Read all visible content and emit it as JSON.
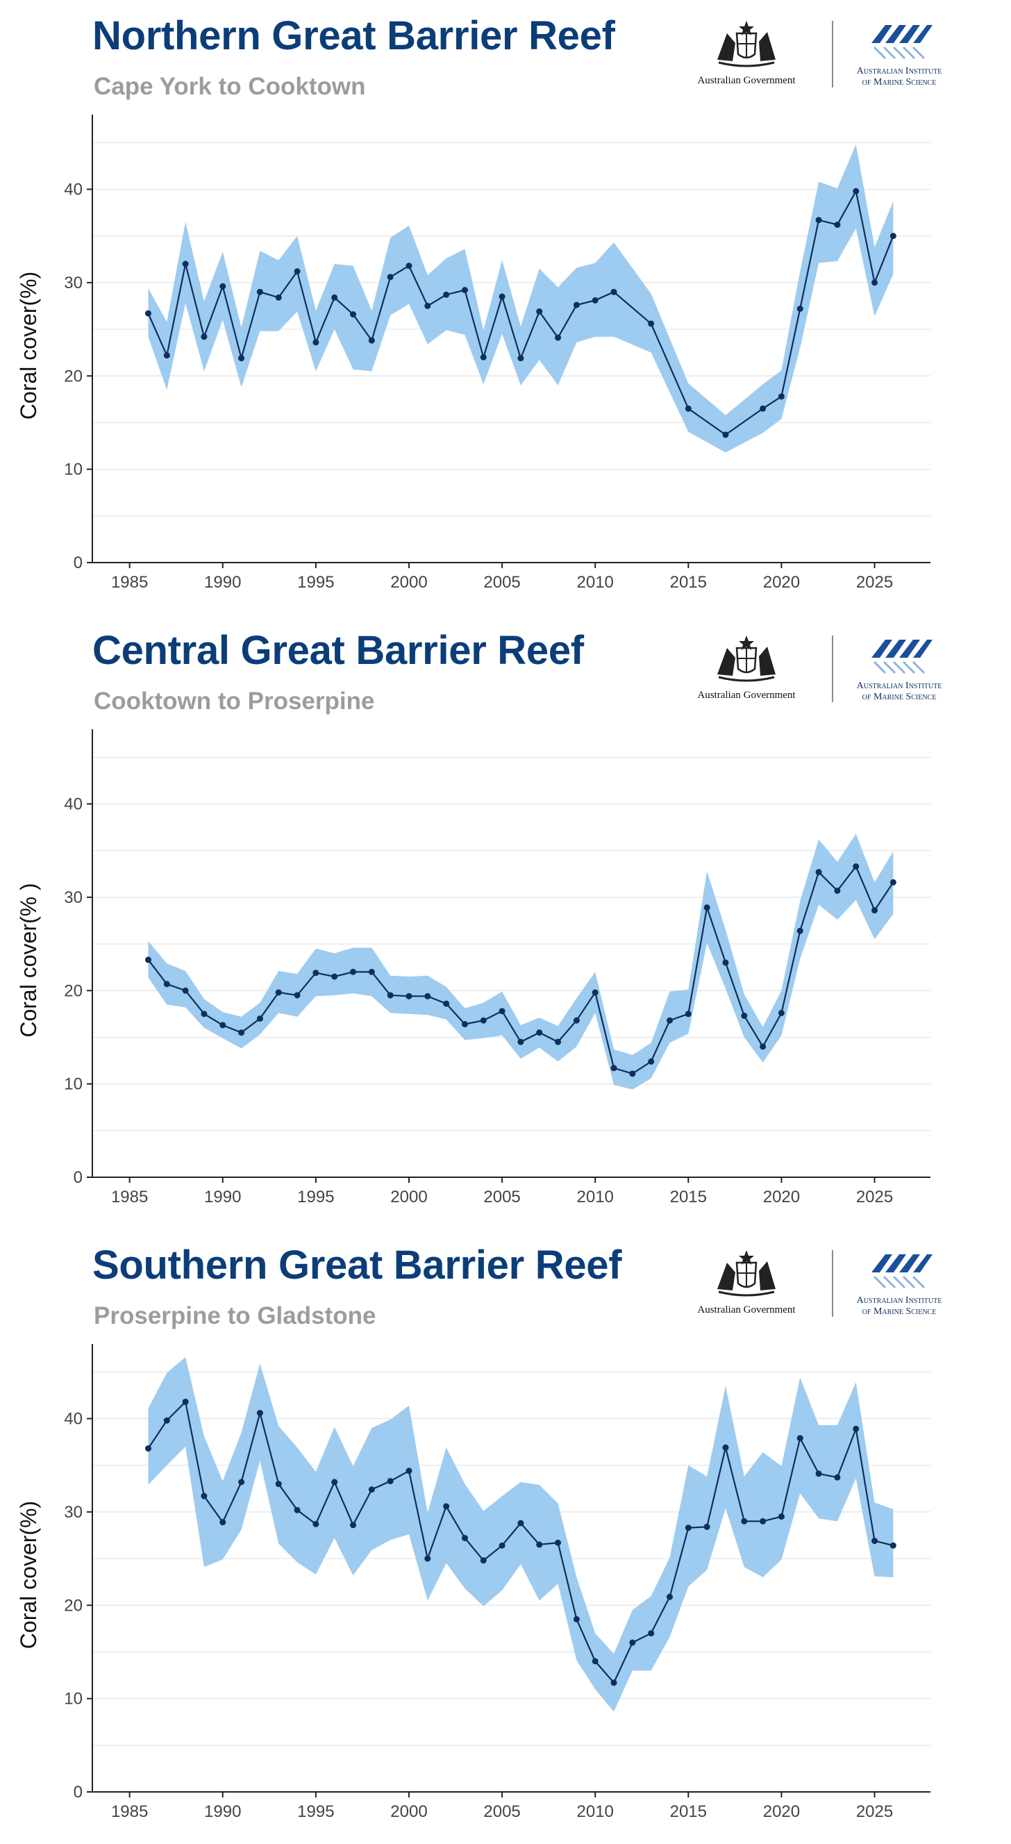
{
  "branding": {
    "government": "Australian Government",
    "institute_line1": "Australian Institute",
    "institute_line2": "of Marine Science"
  },
  "chart_data": [
    {
      "type": "line",
      "title": "Northern Great Barrier Reef",
      "subtitle": "Cape York to Cooktown",
      "ylabel": "Coral cover(%)",
      "xlabel": "",
      "xlim": [
        1983,
        2028
      ],
      "ylim": [
        0,
        48
      ],
      "x_ticks": [
        1985,
        1990,
        1995,
        2000,
        2005,
        2010,
        2015,
        2020,
        2025
      ],
      "y_ticks": [
        0,
        10,
        20,
        30,
        40
      ],
      "grid": true,
      "colors": {
        "band": "#9ecbf0",
        "line": "#0d2f5a",
        "title": "#0b3d79",
        "subtitle": "#9c9c9c"
      },
      "series": [
        {
          "x": [
            1986,
            1987,
            1988,
            1989,
            1990,
            1991,
            1992,
            1993,
            1994,
            1995,
            1996,
            1997,
            1998,
            1999,
            2000,
            2001,
            2002,
            2003,
            2004,
            2005,
            2006,
            2007,
            2008,
            2009,
            2010,
            2011,
            2013,
            2015,
            2017,
            2019,
            2020,
            2021,
            2022,
            2023,
            2024,
            2025,
            2026
          ],
          "y": [
            26.7,
            22.2,
            32.0,
            24.2,
            29.6,
            21.9,
            29.0,
            28.4,
            31.2,
            23.6,
            28.4,
            26.6,
            23.8,
            30.6,
            31.8,
            27.5,
            28.7,
            29.2,
            22.0,
            28.5,
            21.9,
            26.9,
            24.1,
            27.6,
            28.1,
            29.0,
            25.6,
            16.5,
            13.7,
            16.5,
            17.8,
            27.2,
            36.7,
            36.2,
            39.8,
            30.0,
            35.0
          ],
          "lower": [
            24.2,
            18.5,
            27.8,
            20.5,
            26.0,
            18.8,
            24.8,
            24.8,
            26.9,
            20.5,
            25.0,
            20.7,
            20.5,
            26.5,
            27.7,
            23.4,
            24.9,
            24.4,
            19.1,
            24.5,
            19.0,
            21.7,
            19.0,
            23.6,
            24.2,
            24.2,
            22.5,
            14.0,
            11.8,
            13.9,
            15.4,
            23.0,
            32.1,
            32.3,
            35.8,
            26.4,
            30.9
          ],
          "upper": [
            29.4,
            25.8,
            36.5,
            28.0,
            33.3,
            25.2,
            33.4,
            32.4,
            35.0,
            27.0,
            32.0,
            31.8,
            27.0,
            34.8,
            36.1,
            30.8,
            32.6,
            33.6,
            24.9,
            32.4,
            25.3,
            31.5,
            29.5,
            31.6,
            32.1,
            34.3,
            28.8,
            19.2,
            15.8,
            19.1,
            20.6,
            31.2,
            40.8,
            40.1,
            44.8,
            33.8,
            38.7
          ]
        }
      ]
    },
    {
      "type": "line",
      "title": "Central Great Barrier Reef",
      "subtitle": "Cooktown to Proserpine",
      "ylabel": "Coral cover(% )",
      "xlabel": "",
      "xlim": [
        1983,
        2028
      ],
      "ylim": [
        0,
        48
      ],
      "x_ticks": [
        1985,
        1990,
        1995,
        2000,
        2005,
        2010,
        2015,
        2020,
        2025
      ],
      "y_ticks": [
        0,
        10,
        20,
        30,
        40
      ],
      "grid": true,
      "colors": {
        "band": "#9ecbf0",
        "line": "#0d2f5a",
        "title": "#0b3d79",
        "subtitle": "#9c9c9c"
      },
      "series": [
        {
          "x": [
            1986,
            1987,
            1988,
            1989,
            1990,
            1991,
            1992,
            1993,
            1994,
            1995,
            1996,
            1997,
            1998,
            1999,
            2000,
            2001,
            2002,
            2003,
            2004,
            2005,
            2006,
            2007,
            2008,
            2009,
            2010,
            2011,
            2012,
            2013,
            2014,
            2015,
            2016,
            2017,
            2018,
            2019,
            2020,
            2021,
            2022,
            2023,
            2024,
            2025,
            2026
          ],
          "y": [
            23.3,
            20.7,
            20.0,
            17.5,
            16.3,
            15.5,
            17.0,
            19.8,
            19.5,
            21.9,
            21.5,
            22.0,
            22.0,
            19.5,
            19.4,
            19.4,
            18.6,
            16.4,
            16.8,
            17.8,
            14.5,
            15.5,
            14.5,
            16.8,
            19.8,
            11.7,
            11.1,
            12.4,
            16.8,
            17.5,
            28.9,
            23.0,
            17.3,
            14.0,
            17.6,
            26.4,
            32.7,
            30.7,
            33.3,
            28.6,
            31.6
          ],
          "lower": [
            21.4,
            18.5,
            18.2,
            16.0,
            14.9,
            13.8,
            15.3,
            17.6,
            17.2,
            19.4,
            19.5,
            19.7,
            19.4,
            17.6,
            17.5,
            17.4,
            16.9,
            14.7,
            14.9,
            15.2,
            12.7,
            13.9,
            12.4,
            14.0,
            17.6,
            9.9,
            9.4,
            10.6,
            14.4,
            15.4,
            25.1,
            20.2,
            15.0,
            12.3,
            15.2,
            23.4,
            29.2,
            27.6,
            29.7,
            25.5,
            28.2
          ],
          "upper": [
            25.3,
            22.9,
            22.1,
            19.1,
            17.7,
            17.2,
            18.7,
            22.1,
            21.8,
            24.5,
            24.0,
            24.6,
            24.6,
            21.6,
            21.5,
            21.6,
            20.4,
            18.1,
            18.7,
            19.9,
            16.3,
            17.1,
            16.2,
            19.2,
            22.0,
            13.7,
            13.1,
            14.4,
            19.9,
            20.1,
            32.8,
            26.5,
            19.6,
            16.1,
            20.0,
            29.6,
            36.2,
            33.8,
            36.8,
            31.6,
            34.9
          ]
        }
      ]
    },
    {
      "type": "line",
      "title": "Southern Great Barrier Reef",
      "subtitle": "Proserpine to Gladstone",
      "ylabel": "Coral cover(%)",
      "xlabel": "",
      "xlim": [
        1983,
        2028
      ],
      "ylim": [
        0,
        48
      ],
      "x_ticks": [
        1985,
        1990,
        1995,
        2000,
        2005,
        2010,
        2015,
        2020,
        2025
      ],
      "y_ticks": [
        0,
        10,
        20,
        30,
        40
      ],
      "grid": true,
      "colors": {
        "band": "#9ecbf0",
        "line": "#0d2f5a",
        "title": "#0b3d79",
        "subtitle": "#9c9c9c"
      },
      "series": [
        {
          "x": [
            1986,
            1987,
            1988,
            1989,
            1990,
            1991,
            1992,
            1993,
            1994,
            1995,
            1996,
            1997,
            1998,
            1999,
            2000,
            2001,
            2002,
            2003,
            2004,
            2005,
            2006,
            2007,
            2008,
            2009,
            2010,
            2011,
            2012,
            2013,
            2014,
            2015,
            2016,
            2017,
            2018,
            2019,
            2020,
            2021,
            2022,
            2023,
            2024,
            2025,
            2026
          ],
          "y": [
            36.8,
            39.8,
            41.8,
            31.7,
            28.9,
            33.2,
            40.6,
            33.0,
            30.2,
            28.7,
            33.2,
            28.6,
            32.4,
            33.3,
            34.4,
            25.0,
            30.6,
            27.2,
            24.8,
            26.4,
            28.8,
            26.5,
            26.7,
            18.5,
            14.0,
            11.7,
            16.0,
            17.0,
            20.9,
            28.3,
            28.4,
            36.9,
            29.0,
            29.0,
            29.5,
            37.9,
            34.1,
            33.7,
            38.9,
            26.9,
            26.4
          ],
          "lower": [
            32.9,
            35.0,
            37.0,
            24.1,
            24.9,
            28.1,
            35.5,
            26.6,
            24.6,
            23.3,
            27.2,
            23.2,
            25.9,
            27.0,
            27.6,
            20.5,
            24.5,
            21.8,
            19.9,
            21.6,
            24.4,
            20.5,
            22.3,
            14.1,
            11.0,
            8.6,
            13.0,
            13.0,
            16.6,
            22.0,
            23.8,
            30.4,
            24.1,
            23.0,
            24.9,
            32.0,
            29.3,
            29.0,
            33.6,
            23.1,
            23.0
          ],
          "upper": [
            41.1,
            44.9,
            46.6,
            38.1,
            33.3,
            38.5,
            45.9,
            39.2,
            36.9,
            34.3,
            39.1,
            34.9,
            39.0,
            39.9,
            41.4,
            29.9,
            36.9,
            33.0,
            30.1,
            31.7,
            33.2,
            32.9,
            30.9,
            23.0,
            17.0,
            14.8,
            19.5,
            21.0,
            25.1,
            35.0,
            33.8,
            43.5,
            33.8,
            36.4,
            34.9,
            44.4,
            39.3,
            39.3,
            43.9,
            31.0,
            30.3
          ]
        }
      ]
    }
  ]
}
